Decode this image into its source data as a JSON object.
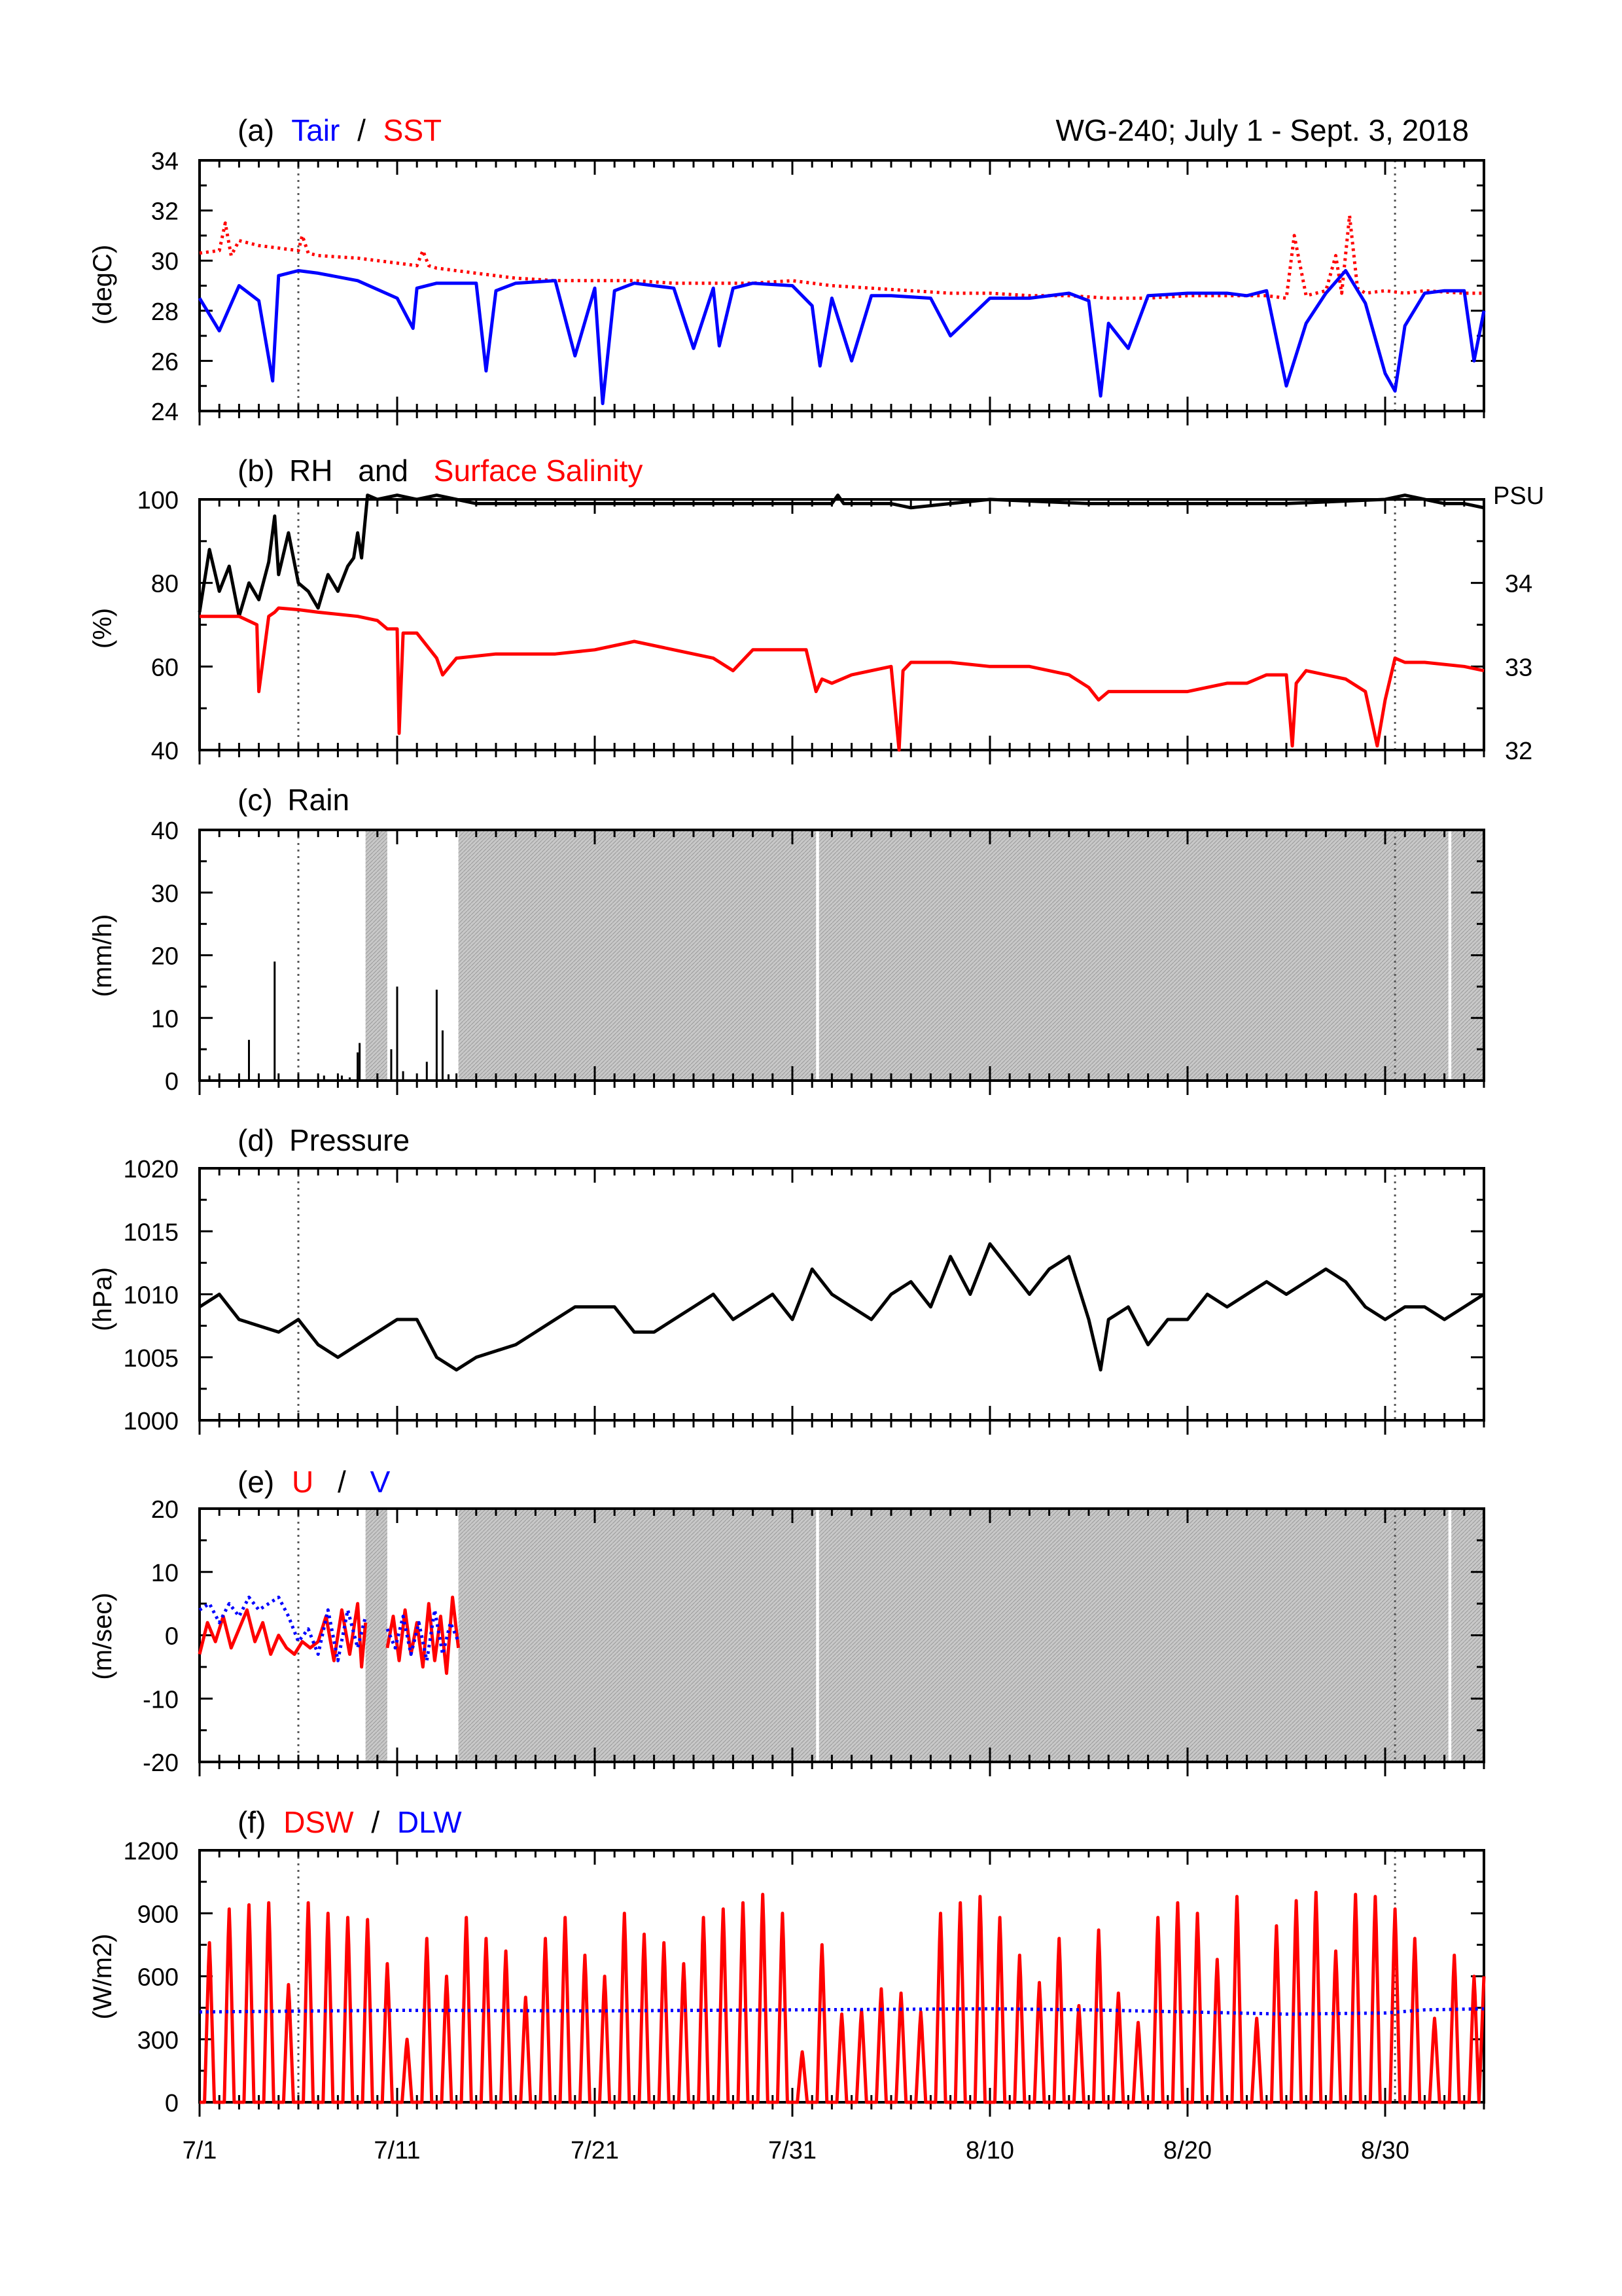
{
  "header": {
    "right_title": "WG-240;  July 1 - Sept. 3, 2018"
  },
  "colors": {
    "red": "#ff0000",
    "blue": "#0000ff",
    "black": "#000000",
    "gap": "#c8c8c8",
    "ref_line": "#555555"
  },
  "time_axis": {
    "range_days": [
      0,
      65
    ],
    "tick_labels": [
      "7/1",
      "7/11",
      "7/21",
      "7/31",
      "8/10",
      "8/20",
      "8/30"
    ],
    "tick_days": [
      0,
      10,
      20,
      30,
      40,
      50,
      60
    ],
    "reference_days": [
      5,
      60.5
    ]
  },
  "gaps": {
    "shade_ranges_days": [
      [
        8.4,
        9.5
      ],
      [
        13.1,
        31.2
      ],
      [
        31.35,
        63.2
      ],
      [
        63.35,
        65
      ]
    ]
  },
  "chart_data": [
    {
      "id": "a",
      "type": "line",
      "title_prefix": "(a)",
      "series_labels": [
        "Tair",
        "SST"
      ],
      "separator": "/",
      "ylabel": "(degC)",
      "ylim": [
        24,
        34
      ],
      "yticks": [
        24,
        26,
        28,
        30,
        32,
        34
      ],
      "series": [
        {
          "name": "Tair",
          "style": "solid",
          "color": "blue",
          "x": [
            0,
            1,
            2,
            3,
            3.7,
            4,
            5,
            6,
            8,
            10,
            10.8,
            11,
            12,
            14,
            14.5,
            15,
            16,
            18,
            19,
            20,
            20.4,
            21,
            22,
            24,
            25,
            26,
            26.3,
            27,
            28,
            30,
            31,
            31.4,
            32,
            33,
            34,
            35,
            37,
            38,
            40,
            42,
            44,
            45,
            45.6,
            46,
            47,
            48,
            50,
            52,
            53,
            54,
            55,
            56,
            57,
            58,
            59,
            60,
            60.5,
            61,
            62,
            63,
            64,
            64.5,
            65
          ],
          "y": [
            28.5,
            27.2,
            29,
            28.4,
            25.2,
            29.4,
            29.6,
            29.5,
            29.2,
            28.5,
            27.3,
            28.9,
            29.1,
            29.1,
            25.6,
            28.8,
            29.1,
            29.2,
            26.2,
            28.9,
            24.3,
            28.8,
            29.1,
            28.9,
            26.5,
            28.9,
            26.6,
            28.9,
            29.1,
            29,
            28.2,
            25.8,
            28.5,
            26,
            28.6,
            28.6,
            28.5,
            27,
            28.5,
            28.5,
            28.7,
            28.4,
            24.6,
            27.5,
            26.5,
            28.6,
            28.7,
            28.7,
            28.6,
            28.8,
            25,
            27.5,
            28.7,
            29.6,
            28.3,
            25.5,
            24.8,
            27.4,
            28.7,
            28.8,
            28.8,
            26,
            28
          ]
        },
        {
          "name": "SST",
          "style": "dotted",
          "color": "red",
          "x": [
            0,
            1,
            1.3,
            1.6,
            2,
            3,
            4,
            5,
            5.2,
            5.5,
            6,
            8,
            10,
            11,
            11.3,
            11.6,
            12,
            14,
            15,
            16,
            18,
            20,
            22,
            24,
            26,
            28,
            30,
            32,
            34,
            36,
            38,
            40,
            42,
            44,
            46,
            48,
            50,
            52,
            53,
            54,
            55,
            55.4,
            56,
            57,
            57.5,
            57.8,
            58.2,
            58.6,
            59,
            60,
            61,
            62,
            64,
            65
          ],
          "y": [
            30.3,
            30.4,
            31.5,
            30.2,
            30.8,
            30.6,
            30.5,
            30.4,
            31,
            30.3,
            30.2,
            30.1,
            29.9,
            29.8,
            30.4,
            29.8,
            29.7,
            29.5,
            29.4,
            29.3,
            29.2,
            29.2,
            29.2,
            29.1,
            29.1,
            29.1,
            29.2,
            29,
            28.9,
            28.8,
            28.7,
            28.7,
            28.6,
            28.6,
            28.5,
            28.5,
            28.6,
            28.6,
            28.6,
            28.6,
            28.5,
            31,
            28.6,
            28.8,
            30.2,
            28.7,
            31.8,
            28.9,
            28.7,
            28.8,
            28.7,
            28.8,
            28.7,
            28.7
          ]
        }
      ]
    },
    {
      "id": "b",
      "type": "line",
      "title_prefix": "(b)",
      "series_labels": [
        "RH",
        "Surface Salinity"
      ],
      "separator": "and",
      "ylabel": "(%)",
      "ylim": [
        40,
        100
      ],
      "yticks": [
        40,
        60,
        80,
        100
      ],
      "y2_title": "PSU",
      "y2lim": [
        32,
        35
      ],
      "y2ticks": [
        32,
        33,
        34
      ],
      "series": [
        {
          "name": "RH",
          "axis": "left",
          "style": "solid",
          "color": "black",
          "x": [
            0,
            0.5,
            1,
            1.5,
            2,
            2.5,
            3,
            3.5,
            3.8,
            4,
            4.5,
            5,
            5.5,
            6,
            6.5,
            7,
            7.5,
            7.8,
            8,
            8.2,
            8.5,
            9,
            10,
            11,
            12,
            13,
            14,
            20,
            24,
            28,
            32,
            32.3,
            32.6,
            33,
            35,
            36,
            38,
            40,
            45,
            50,
            55,
            60,
            61,
            62,
            63,
            64,
            65
          ],
          "y": [
            73,
            88,
            78,
            84,
            72,
            80,
            76,
            85,
            96,
            82,
            92,
            80,
            78,
            74,
            82,
            78,
            84,
            86,
            92,
            86,
            101,
            100,
            101,
            100,
            101,
            100,
            99,
            99,
            99,
            99,
            99,
            101,
            99,
            99,
            99,
            98,
            99,
            100,
            99,
            99,
            99,
            100,
            101,
            100,
            99,
            99,
            98
          ]
        },
        {
          "name": "Surface Salinity",
          "axis": "right",
          "style": "solid",
          "color": "red",
          "x": [
            0,
            2,
            2.9,
            3,
            3.5,
            3.8,
            4,
            5,
            6,
            8,
            9,
            9.5,
            10,
            10.1,
            10.3,
            11,
            11.5,
            12,
            12.3,
            13,
            15,
            18,
            20,
            22,
            24,
            26,
            27,
            28,
            30,
            30.7,
            31,
            31.2,
            31.5,
            32,
            33,
            35,
            35.4,
            35.6,
            36,
            38,
            40,
            42,
            44,
            45,
            45.5,
            46,
            48,
            50,
            52,
            53,
            54,
            55,
            55.3,
            55.5,
            56,
            58,
            59,
            59.6,
            60,
            60.5,
            61,
            62,
            64,
            65
          ],
          "y": [
            33.6,
            33.6,
            33.5,
            32.7,
            33.6,
            33.65,
            33.7,
            33.68,
            33.65,
            33.6,
            33.55,
            33.45,
            33.45,
            32.2,
            33.4,
            33.4,
            33.25,
            33.1,
            32.9,
            33.1,
            33.15,
            33.15,
            33.2,
            33.3,
            33.2,
            33.1,
            32.95,
            33.2,
            33.2,
            33.2,
            32.9,
            32.7,
            32.85,
            32.8,
            32.9,
            33,
            32,
            32.95,
            33.05,
            33.05,
            33,
            33,
            32.9,
            32.75,
            32.6,
            32.7,
            32.7,
            32.7,
            32.8,
            32.8,
            32.9,
            32.9,
            32.05,
            32.8,
            32.95,
            32.85,
            32.7,
            32.05,
            32.6,
            33.1,
            33.05,
            33.05,
            33,
            32.95
          ]
        }
      ]
    },
    {
      "id": "c",
      "type": "bar",
      "title_prefix": "(c)",
      "title_text": "Rain",
      "ylabel": "(mm/h)",
      "ylim": [
        0,
        40
      ],
      "yticks": [
        0,
        10,
        20,
        30,
        40
      ],
      "series": [
        {
          "name": "Rain",
          "color": "black",
          "x": [
            0.5,
            2.5,
            3.8,
            6.3,
            7.2,
            7.6,
            8,
            8.1,
            9.7,
            10,
            10.3,
            11.5,
            12,
            12.3,
            12.6
          ],
          "values": [
            0.8,
            6.5,
            19,
            0.8,
            0.8,
            0.5,
            4.5,
            6,
            5,
            15,
            1.5,
            3,
            14.5,
            8,
            1
          ]
        }
      ]
    },
    {
      "id": "d",
      "type": "line",
      "title_prefix": "(d)",
      "title_text": "Pressure",
      "ylabel": "(hPa)",
      "ylim": [
        1000,
        1020
      ],
      "yticks": [
        1000,
        1005,
        1010,
        1015,
        1020
      ],
      "series": [
        {
          "name": "Pressure",
          "color": "black",
          "x": [
            0,
            1,
            2,
            3,
            4,
            5,
            6,
            7,
            8,
            9,
            10,
            11,
            12,
            13,
            14,
            15,
            16,
            17,
            18,
            19,
            20,
            21,
            22,
            23,
            24,
            25,
            26,
            27,
            28,
            29,
            30,
            31,
            32,
            33,
            34,
            35,
            36,
            37,
            38,
            39,
            40,
            41,
            42,
            43,
            44,
            45,
            45.6,
            46,
            47,
            48,
            49,
            50,
            51,
            52,
            53,
            54,
            55,
            56,
            57,
            58,
            59,
            60,
            61,
            62,
            63,
            64,
            65
          ],
          "y": [
            1009,
            1010,
            1008,
            1007.5,
            1007,
            1008,
            1006,
            1005,
            1006,
            1007,
            1008,
            1008,
            1005,
            1004,
            1005,
            1005.5,
            1006,
            1007,
            1008,
            1009,
            1009,
            1009,
            1007,
            1007,
            1008,
            1009,
            1010,
            1008,
            1009,
            1010,
            1008,
            1012,
            1010,
            1009,
            1008,
            1010,
            1011,
            1009,
            1013,
            1010,
            1014,
            1012,
            1010,
            1012,
            1013,
            1008,
            1004,
            1008,
            1009,
            1006,
            1008,
            1008,
            1010,
            1009,
            1010,
            1011,
            1010,
            1011,
            1012,
            1011,
            1009,
            1008,
            1009,
            1009,
            1008,
            1009,
            1010
          ]
        }
      ]
    },
    {
      "id": "e",
      "type": "line",
      "title_prefix": "(e)",
      "series_labels": [
        "U",
        "V"
      ],
      "separator": "/",
      "ylabel": "(m/sec)",
      "ylim": [
        -20,
        20
      ],
      "yticks": [
        -20,
        -10,
        0,
        10,
        20
      ],
      "series": [
        {
          "name": "U",
          "style": "solid",
          "color": "red",
          "x": [
            0,
            0.4,
            0.8,
            1.2,
            1.6,
            2,
            2.4,
            2.8,
            3.2,
            3.6,
            4,
            4.4,
            4.8,
            5.2,
            5.6,
            6,
            6.4,
            6.8,
            7.2,
            7.6,
            8,
            8.2,
            8.4
          ],
          "y": [
            -3,
            2,
            -1,
            3,
            -2,
            1,
            4,
            -1,
            2,
            -3,
            0,
            -2,
            -3,
            -1,
            -2,
            -1,
            3,
            -4,
            4,
            -3,
            5,
            -5,
            2
          ]
        },
        {
          "name": "U2",
          "style": "solid",
          "color": "red",
          "x": [
            9.5,
            9.8,
            10.1,
            10.4,
            10.7,
            11,
            11.3,
            11.6,
            11.9,
            12.2,
            12.5,
            12.8,
            13.1
          ],
          "y": [
            -2,
            3,
            -4,
            4,
            -3,
            2,
            -5,
            5,
            -4,
            3,
            -6,
            6,
            -2
          ]
        },
        {
          "name": "V",
          "style": "dotted",
          "color": "blue",
          "x": [
            0,
            0.5,
            1,
            1.5,
            2,
            2.5,
            3,
            3.5,
            4,
            4.5,
            5,
            5.5,
            6,
            6.5,
            7,
            7.5,
            8,
            8.4
          ],
          "y": [
            4,
            5,
            2,
            5,
            3,
            6,
            4,
            5,
            6,
            3,
            -1,
            1,
            -3,
            4,
            -4,
            4,
            -2,
            3
          ]
        },
        {
          "name": "V2",
          "style": "dotted",
          "color": "blue",
          "x": [
            9.5,
            9.9,
            10.3,
            10.7,
            11.1,
            11.5,
            11.9,
            12.3,
            12.7,
            13.1
          ],
          "y": [
            1,
            -2,
            3,
            -3,
            2,
            -4,
            4,
            -3,
            2,
            -1
          ]
        }
      ]
    },
    {
      "id": "f",
      "type": "line",
      "title_prefix": "(f)",
      "series_labels": [
        "DSW",
        "DLW"
      ],
      "separator": "/",
      "ylabel": "(W/m2)",
      "ylim": [
        0,
        1200
      ],
      "yticks": [
        0,
        300,
        600,
        900,
        1200
      ],
      "series": [
        {
          "name": "DSW",
          "style": "solid",
          "color": "red",
          "daily_peaks": [
            760,
            920,
            940,
            950,
            560,
            950,
            900,
            880,
            870,
            660,
            300,
            780,
            600,
            880,
            780,
            720,
            500,
            780,
            880,
            700,
            600,
            900,
            800,
            760,
            660,
            880,
            920,
            950,
            990,
            900,
            240,
            750,
            420,
            440,
            540,
            520,
            430,
            900,
            950,
            980,
            880,
            700,
            570,
            780,
            460,
            820,
            520,
            380,
            880,
            950,
            900,
            680,
            980,
            400,
            840,
            960,
            1000,
            720,
            990,
            980,
            920,
            780,
            400,
            700,
            600
          ]
        },
        {
          "name": "DLW",
          "style": "dotted",
          "color": "blue",
          "x": [
            0,
            10,
            20,
            30,
            40,
            45,
            50,
            55,
            60,
            62,
            65
          ],
          "y": [
            430,
            438,
            435,
            440,
            445,
            440,
            430,
            420,
            425,
            440,
            445
          ]
        }
      ]
    }
  ]
}
